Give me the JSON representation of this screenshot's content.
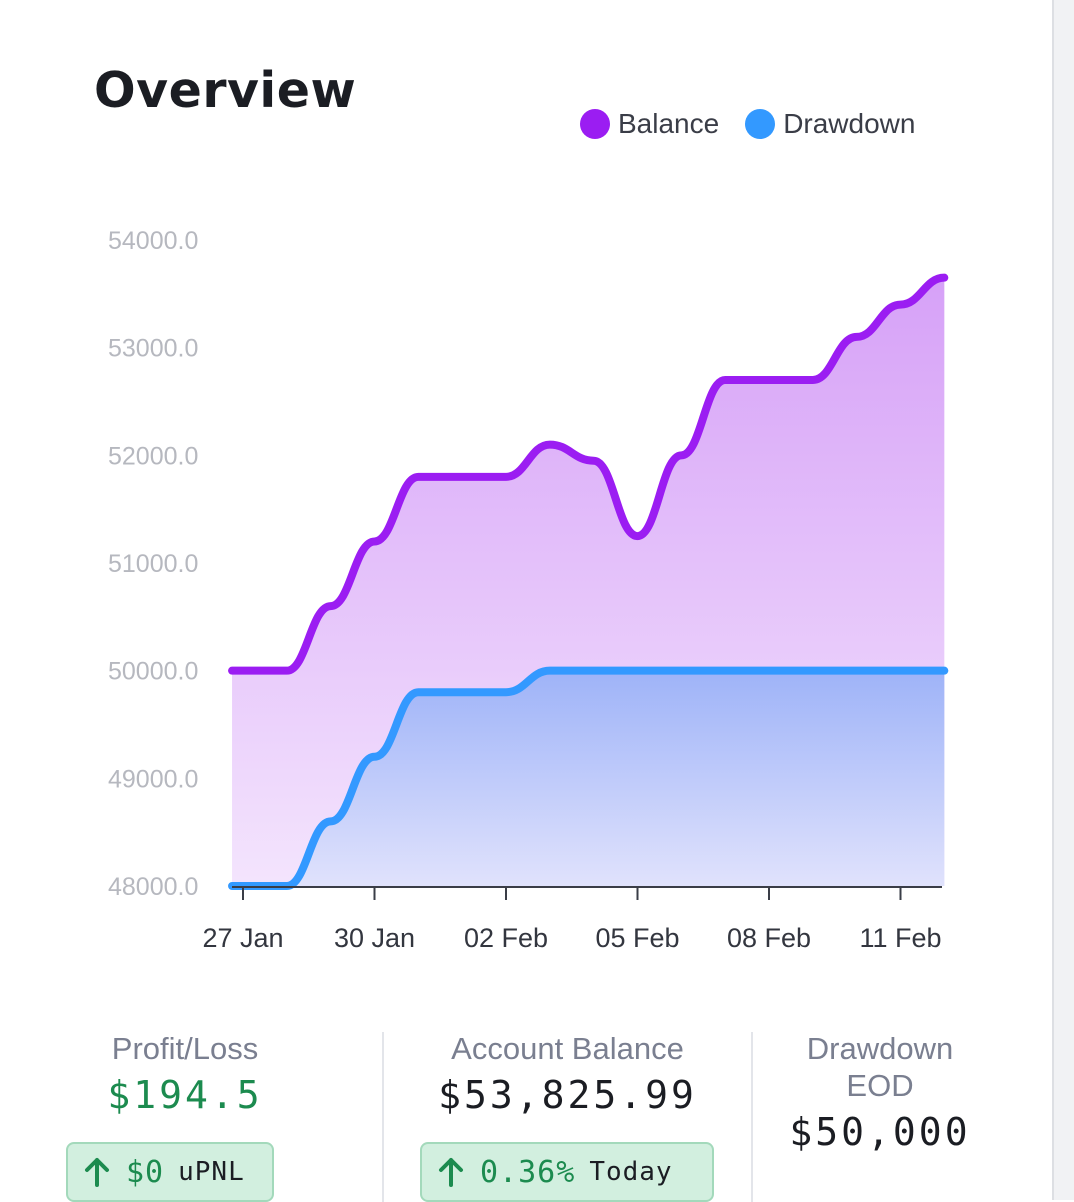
{
  "header": {
    "title": "Overview"
  },
  "legend": [
    {
      "label": "Balance",
      "color": "#9b1df2"
    },
    {
      "label": "Drawdown",
      "color": "#3399ff"
    }
  ],
  "chart_data": {
    "type": "area",
    "title": "Overview",
    "xlabel": "",
    "ylabel": "",
    "x_ticks": [
      "27 Jan",
      "30 Jan",
      "02 Feb",
      "05 Feb",
      "08 Feb",
      "11 Feb"
    ],
    "x_range_days": [
      -0.25,
      16
    ],
    "y_ticks": [
      "54000.0",
      "53000.0",
      "52000.0",
      "51000.0",
      "50000.0",
      "49000.0",
      "48000.0"
    ],
    "ylim": [
      48000,
      54000
    ],
    "series": [
      {
        "name": "Balance",
        "color": "#9b1df2",
        "points": [
          [
            -0.25,
            50000
          ],
          [
            1.0,
            50000
          ],
          [
            2.0,
            50600
          ],
          [
            3.0,
            51200
          ],
          [
            4.0,
            51800
          ],
          [
            5.0,
            51800
          ],
          [
            6.0,
            51800
          ],
          [
            7.0,
            52100
          ],
          [
            8.0,
            51950
          ],
          [
            9.0,
            51250
          ],
          [
            10.0,
            52000
          ],
          [
            11.0,
            52700
          ],
          [
            12.0,
            52700
          ],
          [
            13.0,
            52700
          ],
          [
            14.0,
            53100
          ],
          [
            15.0,
            53400
          ],
          [
            16.0,
            53650
          ]
        ]
      },
      {
        "name": "Drawdown",
        "color": "#3399ff",
        "points": [
          [
            -0.25,
            48000
          ],
          [
            1.0,
            48000
          ],
          [
            2.0,
            48600
          ],
          [
            3.0,
            49200
          ],
          [
            4.0,
            49800
          ],
          [
            5.0,
            49800
          ],
          [
            6.0,
            49800
          ],
          [
            7.0,
            50000
          ],
          [
            8.0,
            50000
          ],
          [
            9.0,
            50000
          ],
          [
            10.0,
            50000
          ],
          [
            11.0,
            50000
          ],
          [
            12.0,
            50000
          ],
          [
            13.0,
            50000
          ],
          [
            14.0,
            50000
          ],
          [
            15.0,
            50000
          ],
          [
            16.0,
            50000
          ]
        ]
      }
    ]
  },
  "stats": {
    "profit_loss": {
      "label": "Profit/Loss",
      "value": "$194.5",
      "pill_value": "$0",
      "pill_suffix": "uPNL"
    },
    "account_balance": {
      "label": "Account Balance",
      "value": "$53,825.99",
      "pill_value": "0.36%",
      "pill_suffix": "Today"
    },
    "drawdown_eod": {
      "label": "Drawdown EOD",
      "value": "$50,000"
    }
  }
}
